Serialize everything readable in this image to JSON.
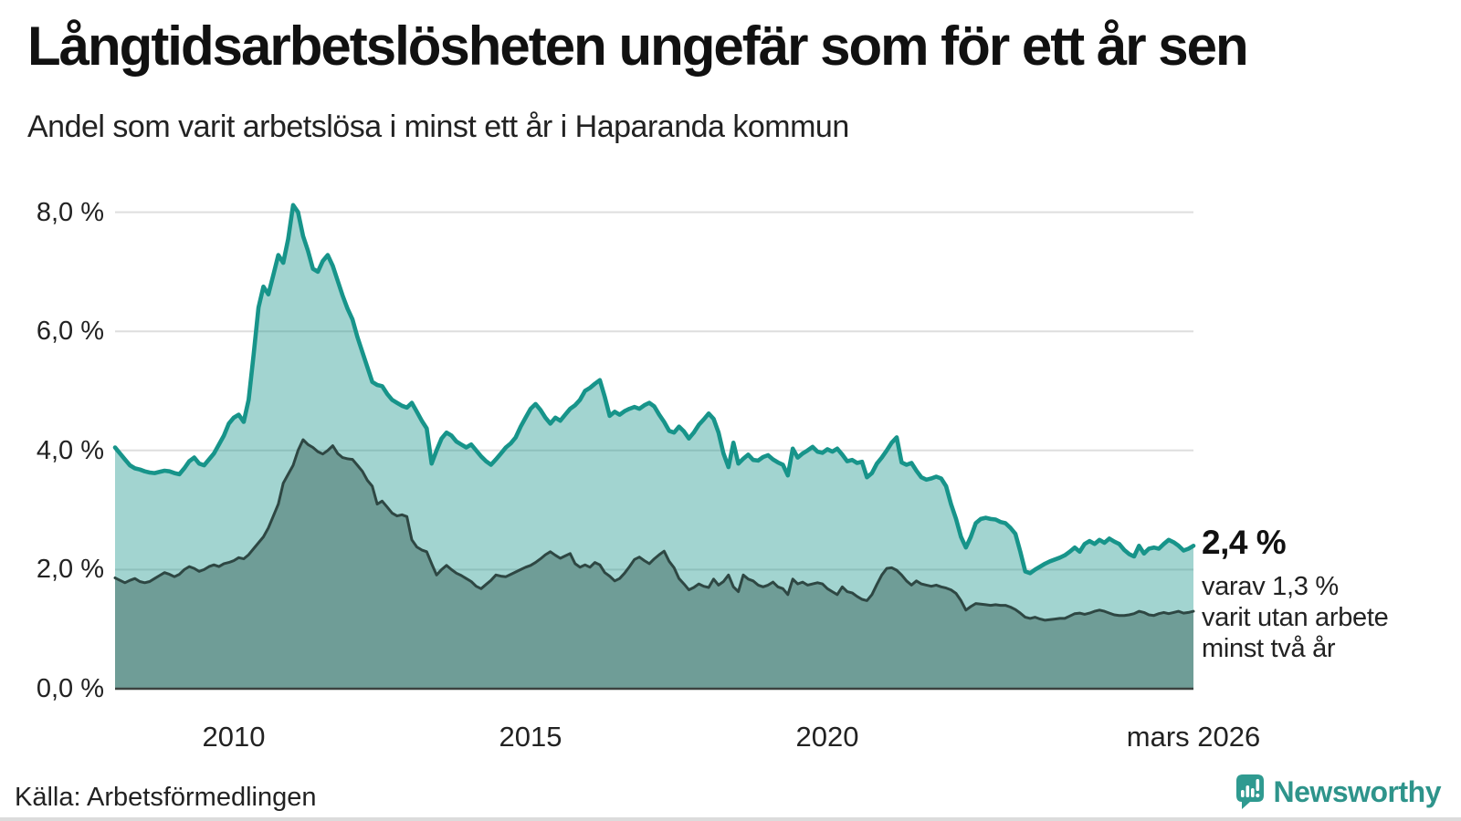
{
  "title": "Långtidsarbetslösheten ungefär som för ett år sen",
  "subtitle": "Andel som varit arbetslösa i minst ett år i Haparanda kommun",
  "source": "Källa: Arbetsförmedlingen",
  "brand": {
    "name": "Newsworthy",
    "color": "#2e948b",
    "icon": "bar-chart-speech-bubble"
  },
  "annotation": {
    "value": "2,4 %",
    "lines": [
      "varav 1,3 %",
      "varit utan arbete",
      "minst två år"
    ]
  },
  "chart_data": {
    "type": "area",
    "title": "Långtidsarbetslösheten ungefär som för ett år sen",
    "subtitle": "Andel som varit arbetslösa i minst ett år i Haparanda kommun",
    "x_start_year": 2008.0,
    "x_step_months": 1,
    "ylim": [
      0,
      8.6
    ],
    "grid": true,
    "y_ticks": [
      {
        "label": "0,0 %",
        "value": 0
      },
      {
        "label": "2,0 %",
        "value": 2
      },
      {
        "label": "4,0 %",
        "value": 4
      },
      {
        "label": "6,0 %",
        "value": 6
      },
      {
        "label": "8,0 %",
        "value": 8
      }
    ],
    "x_ticks": [
      {
        "label": "2010",
        "year": 2010
      },
      {
        "label": "2015",
        "year": 2015
      },
      {
        "label": "2020",
        "year": 2020
      },
      {
        "label": "mars 2026",
        "year": 2026.1667
      }
    ],
    "colors": {
      "line_one_year": "#17948a",
      "fill_one_year": "rgba(23,148,138,0.40)",
      "line_two_year": "#2e4743",
      "fill_two_year": "#6f9d97",
      "gridline": "#dedede",
      "baseline": "#3b423f"
    },
    "end_values": {
      "one_year": "2,4 %",
      "two_year": "1,3 %"
    },
    "series": [
      {
        "name": "Andel arbetslösa minst ett år",
        "values": [
          4.05,
          3.95,
          3.85,
          3.75,
          3.7,
          3.68,
          3.65,
          3.63,
          3.62,
          3.64,
          3.66,
          3.65,
          3.62,
          3.6,
          3.7,
          3.82,
          3.88,
          3.78,
          3.75,
          3.85,
          3.95,
          4.1,
          4.25,
          4.45,
          4.55,
          4.6,
          4.48,
          4.85,
          5.6,
          6.4,
          6.75,
          6.62,
          6.95,
          7.28,
          7.15,
          7.55,
          8.12,
          8.0,
          7.6,
          7.35,
          7.05,
          7.0,
          7.18,
          7.28,
          7.1,
          6.85,
          6.6,
          6.38,
          6.2,
          5.9,
          5.65,
          5.4,
          5.15,
          5.1,
          5.08,
          4.95,
          4.85,
          4.8,
          4.75,
          4.72,
          4.8,
          4.65,
          4.5,
          4.37,
          3.78,
          4.0,
          4.2,
          4.3,
          4.25,
          4.15,
          4.1,
          4.05,
          4.1,
          4.0,
          3.9,
          3.82,
          3.76,
          3.85,
          3.95,
          4.05,
          4.12,
          4.22,
          4.4,
          4.55,
          4.7,
          4.78,
          4.68,
          4.55,
          4.45,
          4.55,
          4.5,
          4.6,
          4.7,
          4.76,
          4.85,
          5.0,
          5.05,
          5.12,
          5.18,
          4.9,
          4.58,
          4.65,
          4.6,
          4.66,
          4.7,
          4.73,
          4.7,
          4.76,
          4.8,
          4.74,
          4.6,
          4.48,
          4.33,
          4.3,
          4.4,
          4.32,
          4.2,
          4.3,
          4.43,
          4.52,
          4.62,
          4.53,
          4.3,
          3.95,
          3.72,
          4.13,
          3.78,
          3.86,
          3.93,
          3.84,
          3.83,
          3.89,
          3.92,
          3.85,
          3.8,
          3.76,
          3.58,
          4.03,
          3.88,
          3.95,
          4.0,
          4.06,
          3.98,
          3.96,
          4.02,
          3.98,
          4.03,
          3.93,
          3.82,
          3.84,
          3.79,
          3.81,
          3.55,
          3.62,
          3.78,
          3.88,
          4.0,
          4.13,
          4.22,
          3.8,
          3.76,
          3.79,
          3.66,
          3.55,
          3.51,
          3.53,
          3.56,
          3.53,
          3.4,
          3.1,
          2.85,
          2.55,
          2.37,
          2.55,
          2.78,
          2.85,
          2.87,
          2.85,
          2.84,
          2.8,
          2.78,
          2.7,
          2.6,
          2.3,
          1.97,
          1.94,
          2.0,
          2.05,
          2.1,
          2.14,
          2.17,
          2.2,
          2.24,
          2.3,
          2.37,
          2.3,
          2.43,
          2.48,
          2.43,
          2.5,
          2.45,
          2.52,
          2.47,
          2.43,
          2.33,
          2.26,
          2.22,
          2.4,
          2.27,
          2.35,
          2.37,
          2.35,
          2.43,
          2.5,
          2.46,
          2.4,
          2.32,
          2.35,
          2.4
        ]
      },
      {
        "name": "Varav utan arbete minst två år",
        "values": [
          1.86,
          1.82,
          1.78,
          1.82,
          1.85,
          1.8,
          1.78,
          1.8,
          1.85,
          1.9,
          1.95,
          1.92,
          1.88,
          1.92,
          2.0,
          2.05,
          2.02,
          1.97,
          2.0,
          2.05,
          2.08,
          2.05,
          2.1,
          2.12,
          2.15,
          2.2,
          2.18,
          2.25,
          2.35,
          2.45,
          2.55,
          2.7,
          2.9,
          3.1,
          3.45,
          3.6,
          3.75,
          4.0,
          4.18,
          4.1,
          4.05,
          3.98,
          3.94,
          4.0,
          4.08,
          3.95,
          3.88,
          3.86,
          3.85,
          3.75,
          3.65,
          3.5,
          3.4,
          3.1,
          3.15,
          3.05,
          2.95,
          2.9,
          2.92,
          2.89,
          2.5,
          2.38,
          2.33,
          2.3,
          2.1,
          1.91,
          2.0,
          2.07,
          2.0,
          1.94,
          1.9,
          1.85,
          1.8,
          1.72,
          1.68,
          1.75,
          1.82,
          1.91,
          1.89,
          1.88,
          1.92,
          1.96,
          2.0,
          2.04,
          2.07,
          2.12,
          2.18,
          2.25,
          2.3,
          2.24,
          2.19,
          2.23,
          2.27,
          2.1,
          2.04,
          2.08,
          2.04,
          2.12,
          2.08,
          1.95,
          1.89,
          1.81,
          1.85,
          1.94,
          2.05,
          2.17,
          2.21,
          2.15,
          2.1,
          2.18,
          2.25,
          2.31,
          2.14,
          2.03,
          1.85,
          1.76,
          1.66,
          1.7,
          1.76,
          1.72,
          1.7,
          1.84,
          1.74,
          1.8,
          1.91,
          1.71,
          1.63,
          1.91,
          1.84,
          1.81,
          1.74,
          1.71,
          1.74,
          1.79,
          1.71,
          1.68,
          1.58,
          1.84,
          1.76,
          1.79,
          1.74,
          1.76,
          1.78,
          1.76,
          1.68,
          1.63,
          1.58,
          1.71,
          1.63,
          1.61,
          1.55,
          1.5,
          1.48,
          1.58,
          1.75,
          1.91,
          2.02,
          2.03,
          1.99,
          1.91,
          1.81,
          1.74,
          1.81,
          1.76,
          1.74,
          1.72,
          1.74,
          1.71,
          1.69,
          1.66,
          1.6,
          1.48,
          1.32,
          1.38,
          1.43,
          1.42,
          1.41,
          1.4,
          1.41,
          1.4,
          1.4,
          1.37,
          1.33,
          1.27,
          1.2,
          1.18,
          1.2,
          1.17,
          1.15,
          1.16,
          1.17,
          1.18,
          1.18,
          1.22,
          1.26,
          1.27,
          1.25,
          1.27,
          1.3,
          1.32,
          1.3,
          1.27,
          1.24,
          1.23,
          1.23,
          1.24,
          1.26,
          1.3,
          1.28,
          1.24,
          1.23,
          1.26,
          1.28,
          1.26,
          1.28,
          1.3,
          1.27,
          1.28,
          1.3
        ]
      }
    ]
  }
}
